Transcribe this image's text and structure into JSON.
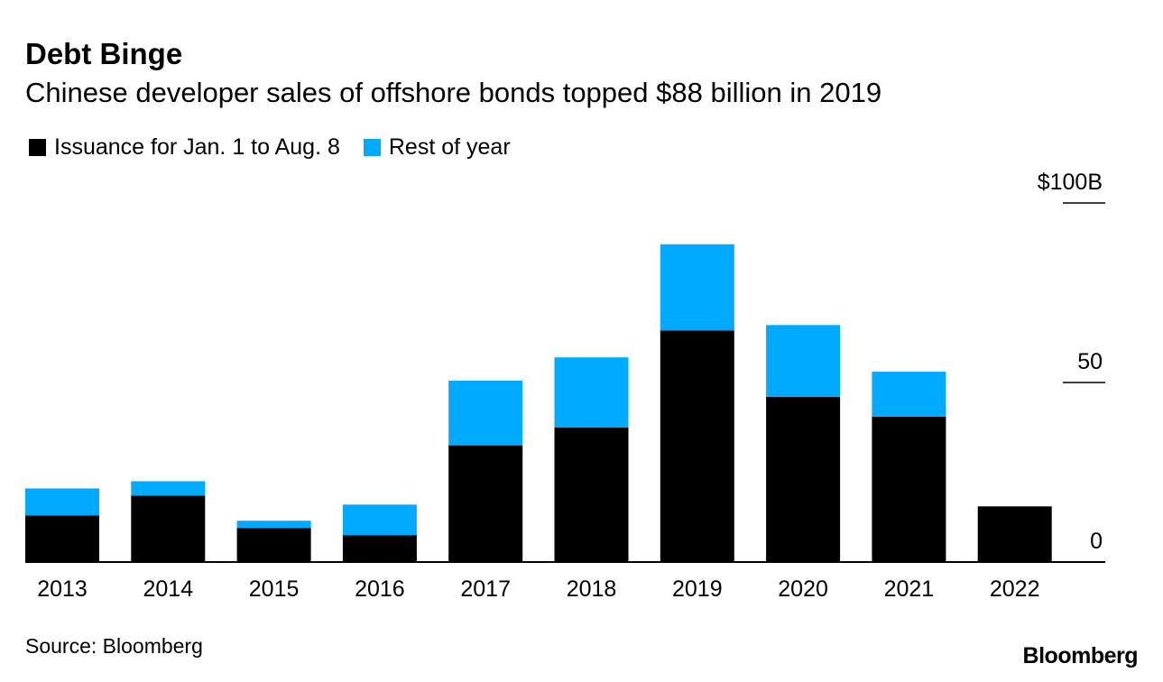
{
  "header": {
    "title": "Debt Binge",
    "subtitle": "Chinese developer sales of offshore bonds topped $88 billion in 2019"
  },
  "legend": [
    {
      "label": "Issuance for Jan. 1 to Aug. 8",
      "color": "#000000"
    },
    {
      "label": "Rest of year",
      "color": "#00aaff"
    }
  ],
  "footer": {
    "source": "Source: Bloomberg",
    "brand": "Bloomberg"
  },
  "chart_data": {
    "type": "bar",
    "stacked": true,
    "title": "Debt Binge",
    "subtitle": "Chinese developer sales of offshore bonds topped $88 billion in 2019",
    "categories": [
      "2013",
      "2014",
      "2015",
      "2016",
      "2017",
      "2018",
      "2019",
      "2020",
      "2021",
      "2022"
    ],
    "series": [
      {
        "name": "Issuance for Jan. 1 to Aug. 8",
        "color": "#000000",
        "values": [
          13,
          18.5,
          9.5,
          7.5,
          32.5,
          37.5,
          64.5,
          46,
          40.5,
          15.5
        ]
      },
      {
        "name": "Rest of year",
        "color": "#00aaff",
        "values": [
          7.5,
          4,
          2,
          8.5,
          18,
          19.5,
          24,
          20,
          12.5,
          0
        ]
      }
    ],
    "ylim": [
      0,
      100
    ],
    "yticks": [
      0,
      50,
      100
    ],
    "ytick_labels": [
      "0",
      "50",
      "$100B"
    ],
    "yaxis_position": "right",
    "xlabel": "",
    "ylabel": ""
  }
}
